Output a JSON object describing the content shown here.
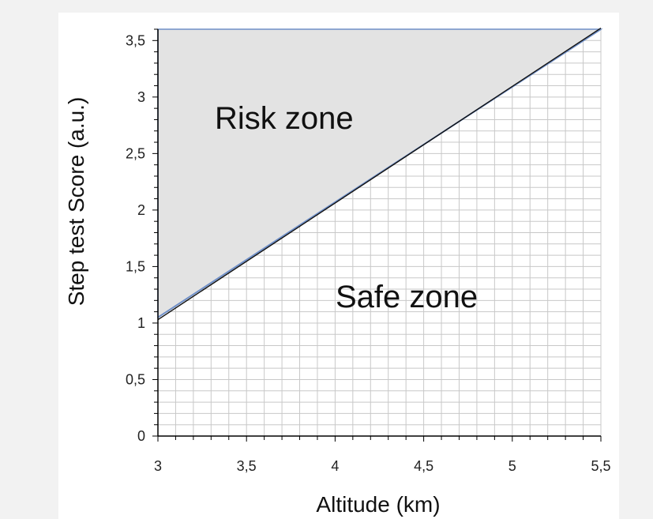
{
  "chart_data": {
    "type": "area",
    "title": "",
    "xlabel": "Altitude (km)",
    "ylabel": "Step test Score (a.u.)",
    "xlim": [
      3,
      5.5
    ],
    "ylim": [
      0,
      3.6
    ],
    "x_ticks": [
      "3",
      "3,5",
      "4",
      "4,5",
      "5",
      "5,5"
    ],
    "y_ticks": [
      "0",
      "0,5",
      "1",
      "1,5",
      "2",
      "2,5",
      "3",
      "3,5"
    ],
    "grid": true,
    "series": [
      {
        "x": [
          3,
          5.5
        ],
        "y": [
          1.05,
          3.6
        ],
        "color": "#6f8fc7"
      },
      {
        "x": [
          3,
          5.5
        ],
        "y": [
          1.03,
          3.61
        ],
        "color": "#111111"
      }
    ],
    "regions": [
      {
        "label": "Risk zone",
        "fill": "#e3e3e3"
      },
      {
        "label": "Safe zone",
        "fill": "#ffffff"
      }
    ],
    "colors": {
      "grid": "#c8c8c8",
      "axis": "#000000",
      "risk_border": "#6f8fc7"
    }
  }
}
